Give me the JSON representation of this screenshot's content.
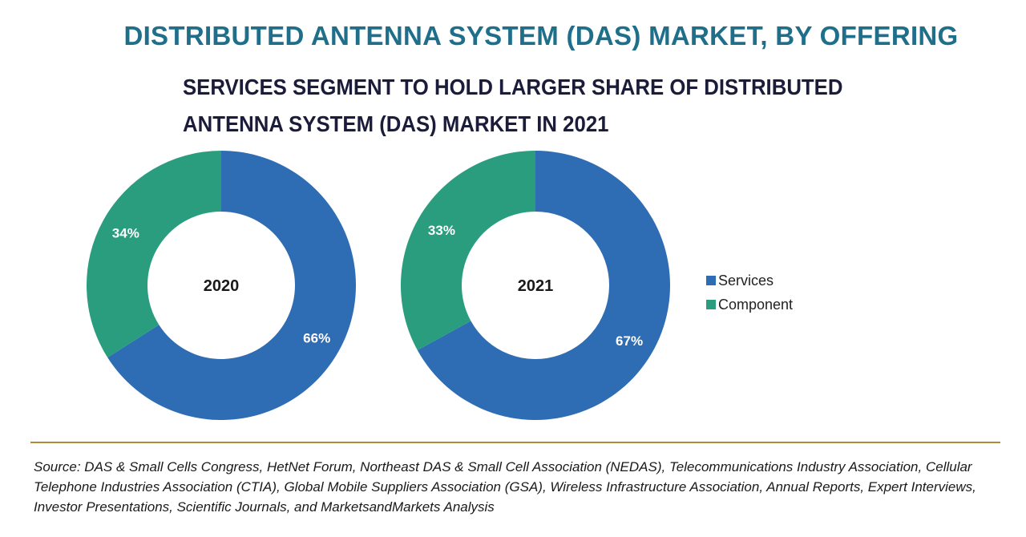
{
  "title": "DISTRIBUTED ANTENNA SYSTEM (DAS) MARKET, BY OFFERING",
  "subtitle": "SERVICES SEGMENT TO HOLD LARGER SHARE OF DISTRIBUTED ANTENNA SYSTEM (DAS) MARKET IN 2021",
  "source": "Source: DAS & Small Cells Congress, HetNet Forum, Northeast DAS & Small Cell Association (NEDAS), Telecommunications Industry Association, Cellular Telephone Industries Association (CTIA), Global Mobile Suppliers Association (GSA), Wireless Infrastructure Association, Annual Reports, Expert Interviews, Investor Presentations, Scientific Journals, and MarketsandMarkets Analysis",
  "colors": {
    "services": "#2e6db4",
    "component": "#2a9d7f",
    "title": "#1f6f8b",
    "rule": "#b3893a"
  },
  "chart_data": [
    {
      "type": "pie",
      "variant": "donut",
      "center_label": "2020",
      "slices": [
        {
          "name": "Services",
          "value": 66,
          "label": "66%"
        },
        {
          "name": "Component",
          "value": 34,
          "label": "34%"
        }
      ]
    },
    {
      "type": "pie",
      "variant": "donut",
      "center_label": "2021",
      "slices": [
        {
          "name": "Services",
          "value": 67,
          "label": "67%"
        },
        {
          "name": "Component",
          "value": 33,
          "label": "33%"
        }
      ]
    }
  ],
  "legend": [
    {
      "name": "Services",
      "color_key": "services"
    },
    {
      "name": "Component",
      "color_key": "component"
    }
  ]
}
